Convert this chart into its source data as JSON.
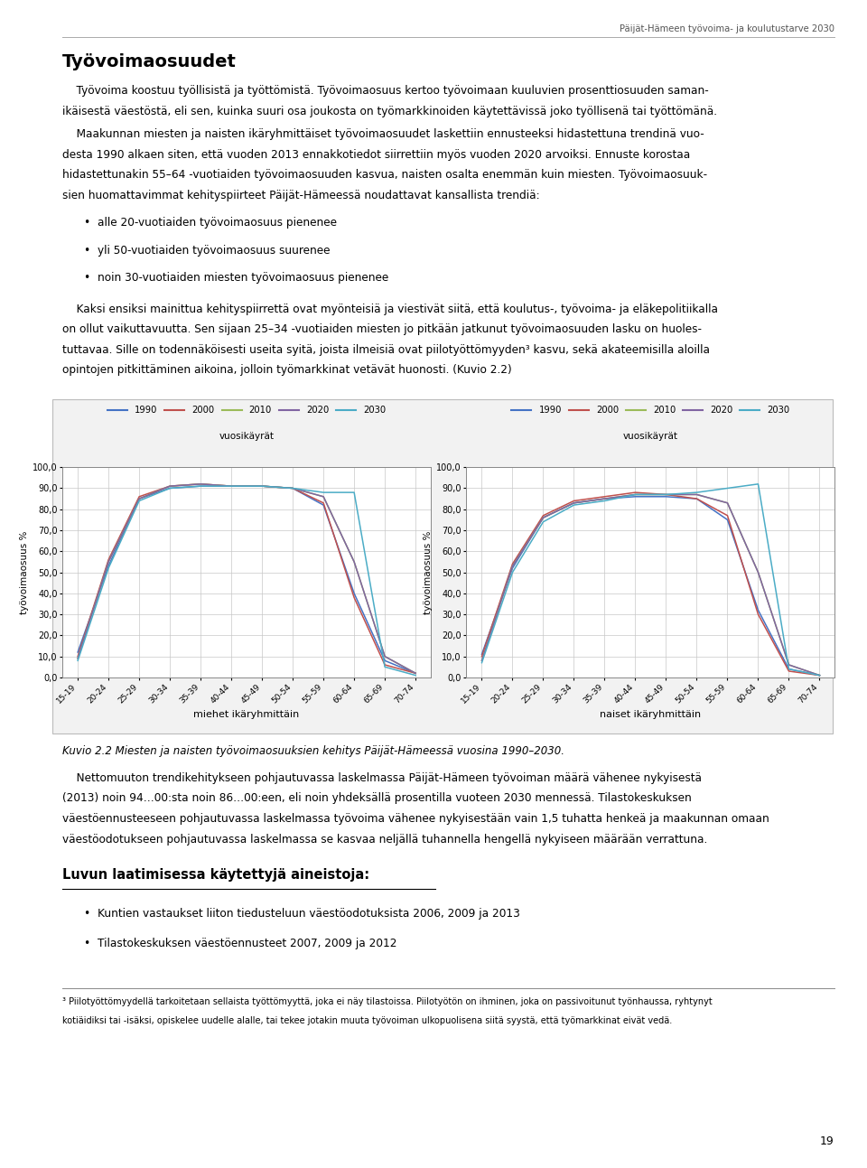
{
  "page_title": "Päijät-Hämeen työvoima- ja koulutustarve 2030",
  "page_number": "19",
  "section_title": "Työvoimaosuudet",
  "caption": "Kuvio 2.2 Miesten ja naisten työvoimaosuuksien kehitys Päijät-Hämeessä vuosina 1990–2030.",
  "section2_title": "Luvun laatimisessa käytettyjä aineistoja:",
  "age_groups": [
    "15-19",
    "20-24",
    "25-29",
    "30-34",
    "35-39",
    "40-44",
    "45-49",
    "50-54",
    "55-59",
    "60-64",
    "65-69",
    "70-74"
  ],
  "legend_years": [
    "1990",
    "2000",
    "2010",
    "2020",
    "2030"
  ],
  "legend_label": "vuosikäyrät",
  "line_colors": [
    "#4472C4",
    "#C0504D",
    "#9BBB59",
    "#8064A2",
    "#4BACC6"
  ],
  "men_data": {
    "1990": [
      12,
      53,
      85,
      90,
      91,
      91,
      91,
      90,
      82,
      40,
      8,
      2
    ],
    "2000": [
      10,
      56,
      86,
      91,
      92,
      91,
      91,
      90,
      83,
      38,
      6,
      2
    ],
    "2010": [
      9,
      55,
      85,
      91,
      92,
      91,
      91,
      90,
      86,
      55,
      10,
      2
    ],
    "2020": [
      9,
      55,
      85,
      91,
      92,
      91,
      91,
      90,
      86,
      55,
      10,
      2
    ],
    "2030": [
      8,
      52,
      84,
      90,
      91,
      91,
      91,
      90,
      88,
      88,
      5,
      1
    ]
  },
  "women_data": {
    "1990": [
      11,
      52,
      76,
      83,
      85,
      86,
      86,
      85,
      75,
      32,
      4,
      1
    ],
    "2000": [
      10,
      54,
      77,
      84,
      86,
      88,
      87,
      85,
      77,
      30,
      3,
      1
    ],
    "2010": [
      8,
      53,
      76,
      83,
      85,
      87,
      87,
      87,
      83,
      50,
      6,
      1
    ],
    "2020": [
      8,
      53,
      76,
      83,
      85,
      87,
      87,
      87,
      83,
      50,
      6,
      1
    ],
    "2030": [
      7,
      50,
      74,
      82,
      84,
      87,
      87,
      88,
      90,
      92,
      4,
      1
    ]
  },
  "ylabel": "työvoimaosuus %",
  "xlabel_men": "miehet ikäryhmittäin",
  "xlabel_women": "naiset ikäryhmittäin",
  "ylim": [
    0,
    100
  ],
  "ytick_vals": [
    0,
    10,
    20,
    30,
    40,
    50,
    60,
    70,
    80,
    90,
    100
  ],
  "grid_color": "#C8C8C8",
  "intro_lines": [
    "    Työvoima koostuu työllisistä ja työttömistä. Työvoimaosuus kertoo työvoimaan kuuluvien prosenttiosuuden saman-",
    "ikäisestä väestöstä, eli sen, kuinka suuri osa joukosta on työmarkkinoiden käytettävissä joko työllisenä tai työttömänä."
  ],
  "body1_lines": [
    "    Maakunnan miesten ja naisten ikäryhmittäiset työvoimaosuudet laskettiin ennusteeksi hidastettuna trendinä vuo-",
    "desta 1990 alkaen siten, että vuoden 2013 ennakkotiedot siirrettiin myös vuoden 2020 arvoiksi. Ennuste korostaa",
    "hidastettunakin 55–64 -vuotiaiden työvoimaosuuden kasvua, naisten osalta enemmän kuin miesten. Työvoimaosuuk-",
    "sien huomattavimmat kehityspiirteet Päijät-Hämeessä noudattavat kansallista trendiä:"
  ],
  "bullets1": [
    "alle 20-vuotiaiden työvoimaosuus pienenee",
    "yli 50-vuotiaiden työvoimaosuus suurenee",
    "noin 30-vuotiaiden miesten työvoimaosuus pienenee"
  ],
  "body2_lines": [
    "    Kaksi ensiksi mainittua kehityspiirrettä ovat myönteisiä ja viestivät siitä, että koulutus-, työvoima- ja eläkepolitiikalla",
    "on ollut vaikuttavuutta. Sen sijaan 25–34 -vuotiaiden miesten jo pitkään jatkunut työvoimaosuuden lasku on huoles-",
    "tuttavaa. Sille on todennäköisesti useita syitä, joista ilmeisiä ovat piilotyöttömyyden³ kasvu, sekä akateemisilla aloilla",
    "opintojen pitkittäminen aikoina, jolloin työmarkkinat vetävät huonosti. (Kuvio 2.2)"
  ],
  "body3_lines": [
    "    Nettomuuton trendikehitykseen pohjautuvassa laskelmassa Päijät-Hämeen työvoiman määrä vähenee nykyisestä",
    "(2013) noin 94…00:sta noin 86…00:een, eli noin yhdeksällä prosentilla vuoteen 2030 mennessä. Tilastokeskuksen",
    "väestöennusteeseen pohjautuvassa laskelmassa työvoima vähenee nykyisestään vain 1,5 tuhatta henkeä ja maakunnan omaan",
    "väestöodotukseen pohjautuvassa laskelmassa se kasvaa neljällä tuhannella hengellä nykyiseen määrään verrattuna."
  ],
  "bullets2": [
    "Kuntien vastaukset liiton tiedusteluun väestöodotuksista 2006, 2009 ja 2013",
    "Tilastokeskuksen väestöennusteet 2007, 2009 ja 2012"
  ],
  "footnote_lines": [
    "³ Piilotyöttömyydellä tarkoitetaan sellaista työttömyyttä, joka ei näy tilastoissa. Piilotyötön on ihminen, joka on passivoitunut työnhaussa, ryhtynyt",
    "kotiäidiksi tai -isäksi, opiskelee uudelle alalle, tai tekee jotakin muuta työvoiman ulkopuolisena siitä syystä, että työmarkkinat eivät vedä."
  ]
}
